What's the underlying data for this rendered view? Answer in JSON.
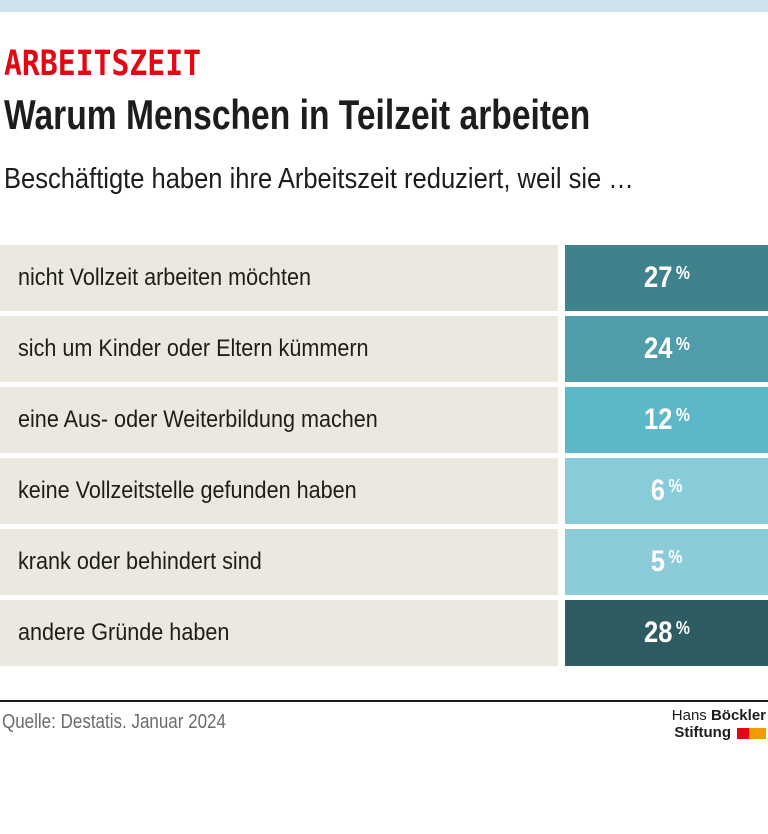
{
  "page": {
    "topbar_color": "#cfe3ed",
    "background": "#ffffff"
  },
  "header": {
    "kicker": "ARBEITSZEIT",
    "kicker_color": "#e30613",
    "title": "Warum Menschen in Teilzeit arbeiten",
    "subtitle": "Beschäftigte haben ihre Arbeitszeit reduziert, weil sie …"
  },
  "chart_data": {
    "type": "bar",
    "orientation": "horizontal",
    "title": "Warum Menschen in Teilzeit arbeiten",
    "subtitle": "Beschäftigte haben ihre Arbeitszeit reduziert, weil sie …",
    "unit": "%",
    "categories": [
      "nicht Vollzeit arbeiten möchten",
      "sich um Kinder oder Eltern kümmern",
      "eine Aus- oder Weiterbildung machen",
      "keine Vollzeitstelle gefunden haben",
      "krank oder behindert sind",
      "andere Gründe haben"
    ],
    "values": [
      27,
      24,
      12,
      6,
      5,
      28
    ],
    "bar_colors": [
      "#3f828b",
      "#4f9dab",
      "#5cb8c9",
      "#88cbd9",
      "#8cccd8",
      "#2d5d63"
    ],
    "label_cell_color": "#ebe9df",
    "value_text_color": "#ffffff",
    "legend": "none",
    "grid": false
  },
  "footer": {
    "source": "Quelle: Destatis. Januar 2024",
    "logo": {
      "name_regular": "Hans",
      "name_bold": "Böckler",
      "line2_bold": "Stiftung",
      "square_red": "#e30613",
      "square_orange": "#f59b00"
    }
  }
}
